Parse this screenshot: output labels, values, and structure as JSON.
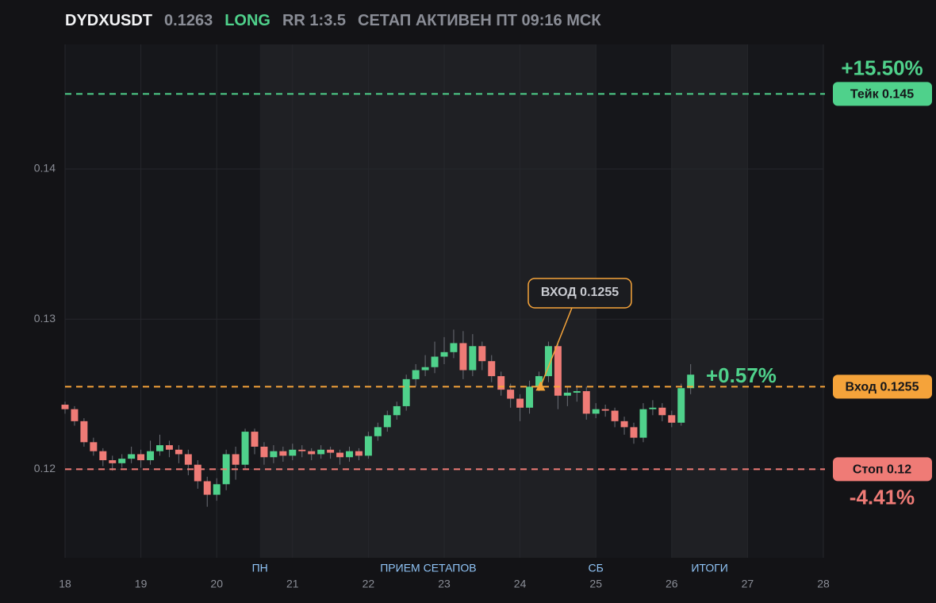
{
  "header": {
    "symbol": "DYDXUSDT",
    "price": "0.1263",
    "side": "LONG",
    "rr": "RR 1:3.5",
    "status": "СЕТАП АКТИВЕН ПТ 09:16 МСК"
  },
  "chart_data": {
    "type": "candlestick",
    "up_color": "#4fd18b",
    "down_color": "#ef7b76",
    "xlim": [
      18,
      28
    ],
    "xticks": [
      18,
      19,
      20,
      21,
      22,
      23,
      24,
      25,
      26,
      27,
      28
    ],
    "ylim": [
      0.1141,
      0.1483
    ],
    "yticks": [
      0.12,
      0.13,
      0.14
    ],
    "grid": true,
    "shaded": [
      [
        20.57,
        25.0
      ],
      [
        26.0,
        27.0
      ]
    ],
    "sessions": [
      {
        "label": "ПН",
        "x": 20.57
      },
      {
        "label": "ПРИЕМ СЕТАПОВ",
        "x": 22.79
      },
      {
        "label": "СБ",
        "x": 25.0
      },
      {
        "label": "ИТОГИ",
        "x": 26.5
      }
    ],
    "x": [
      18,
      18.125,
      18.25,
      18.375,
      18.5,
      18.625,
      18.75,
      18.875,
      19,
      19.125,
      19.25,
      19.375,
      19.5,
      19.625,
      19.75,
      19.875,
      20,
      20.125,
      20.25,
      20.375,
      20.5,
      20.625,
      20.75,
      20.875,
      21,
      21.125,
      21.25,
      21.375,
      21.5,
      21.625,
      21.75,
      21.875,
      22,
      22.125,
      22.25,
      22.375,
      22.5,
      22.625,
      22.75,
      22.875,
      23,
      23.125,
      23.25,
      23.375,
      23.5,
      23.625,
      23.75,
      23.875,
      24,
      24.125,
      24.25,
      24.375,
      24.5,
      24.625,
      24.75,
      24.875,
      25,
      25.125,
      25.25,
      25.375,
      25.5,
      25.625,
      25.75,
      25.875,
      26,
      26.125,
      26.25
    ],
    "open": [
      0.1243,
      0.124,
      0.1232,
      0.1218,
      0.1212,
      0.1206,
      0.1204,
      0.1207,
      0.121,
      0.1206,
      0.1212,
      0.1216,
      0.1213,
      0.121,
      0.1203,
      0.1192,
      0.1183,
      0.119,
      0.121,
      0.1203,
      0.1225,
      0.1215,
      0.1208,
      0.1212,
      0.1209,
      0.1213,
      0.1212,
      0.121,
      0.1213,
      0.1211,
      0.1208,
      0.1212,
      0.1209,
      0.1222,
      0.1228,
      0.1236,
      0.1242,
      0.126,
      0.1266,
      0.1268,
      0.1275,
      0.1278,
      0.1284,
      0.1266,
      0.1282,
      0.1272,
      0.1262,
      0.1253,
      0.1247,
      0.1241,
      0.1255,
      0.1262,
      0.1282,
      0.1249,
      0.1251,
      0.1252,
      0.1237,
      0.124,
      0.1239,
      0.1232,
      0.1228,
      0.1221,
      0.124,
      0.1241,
      0.1236,
      0.1231,
      0.1254
    ],
    "high": [
      0.1245,
      0.1242,
      0.1234,
      0.1221,
      0.1214,
      0.1209,
      0.121,
      0.1215,
      0.1213,
      0.1219,
      0.1223,
      0.1219,
      0.1216,
      0.1213,
      0.1206,
      0.1195,
      0.1194,
      0.1213,
      0.1215,
      0.1227,
      0.1227,
      0.1218,
      0.1216,
      0.1215,
      0.1217,
      0.1216,
      0.1214,
      0.1216,
      0.1215,
      0.1213,
      0.1215,
      0.1214,
      0.1225,
      0.1231,
      0.1239,
      0.1245,
      0.1263,
      0.127,
      0.1276,
      0.1285,
      0.1288,
      0.1293,
      0.1292,
      0.129,
      0.1285,
      0.1276,
      0.1265,
      0.1257,
      0.125,
      0.1259,
      0.1265,
      0.1285,
      0.1285,
      0.1255,
      0.1256,
      0.1255,
      0.1244,
      0.1243,
      0.1241,
      0.1235,
      0.1231,
      0.1244,
      0.1246,
      0.1244,
      0.1239,
      0.1257,
      0.127
    ],
    "low": [
      0.1237,
      0.1229,
      0.1215,
      0.1209,
      0.1202,
      0.1199,
      0.1201,
      0.1204,
      0.1201,
      0.1203,
      0.1209,
      0.1208,
      0.1204,
      0.1196,
      0.1187,
      0.1175,
      0.1179,
      0.1186,
      0.1193,
      0.12,
      0.121,
      0.1203,
      0.1204,
      0.1205,
      0.1206,
      0.1208,
      0.1206,
      0.1207,
      0.1207,
      0.1203,
      0.1205,
      0.1206,
      0.1207,
      0.1219,
      0.1225,
      0.1233,
      0.1239,
      0.1255,
      0.1262,
      0.1264,
      0.127,
      0.1274,
      0.126,
      0.1262,
      0.1266,
      0.1258,
      0.1249,
      0.1241,
      0.1232,
      0.1237,
      0.1252,
      0.1258,
      0.124,
      0.1242,
      0.1245,
      0.1233,
      0.1234,
      0.1235,
      0.1228,
      0.1223,
      0.1217,
      0.1218,
      0.1236,
      0.1232,
      0.1228,
      0.1229,
      0.125
    ],
    "close": [
      0.124,
      0.1232,
      0.1218,
      0.1212,
      0.1206,
      0.1204,
      0.1207,
      0.121,
      0.1206,
      0.1212,
      0.1216,
      0.1213,
      0.121,
      0.1203,
      0.1192,
      0.1183,
      0.119,
      0.121,
      0.1203,
      0.1225,
      0.1215,
      0.1208,
      0.1212,
      0.1209,
      0.1213,
      0.1212,
      0.121,
      0.1213,
      0.1211,
      0.1208,
      0.1212,
      0.1209,
      0.1222,
      0.1228,
      0.1236,
      0.1242,
      0.126,
      0.1266,
      0.1268,
      0.1275,
      0.1278,
      0.1284,
      0.1266,
      0.1282,
      0.1272,
      0.1262,
      0.1253,
      0.1247,
      0.1241,
      0.1255,
      0.1262,
      0.1282,
      0.1249,
      0.1251,
      0.1252,
      0.1237,
      0.124,
      0.1239,
      0.1232,
      0.1228,
      0.1221,
      0.124,
      0.1241,
      0.1236,
      0.1231,
      0.1254,
      0.1263
    ],
    "levels": [
      {
        "value": 0.145,
        "label": "Тейк 0.145",
        "color": "#4fd18b",
        "change": {
          "value": 15.5,
          "label": "+15.50%"
        }
      },
      {
        "value": 0.1255,
        "label": "Вход 0.1255",
        "color": "#f5a33a",
        "change": {
          "value": 0.57,
          "label": "+0.57%"
        }
      },
      {
        "value": 0.12,
        "label": "Стоп 0.12",
        "color": "#ef7b76",
        "change": {
          "value": -4.41,
          "label": "-4.41%"
        }
      }
    ],
    "annotation": {
      "label": "ВХОД 0.1255",
      "x": 24.27,
      "y": 0.1255,
      "color": "#f5a33a"
    }
  }
}
